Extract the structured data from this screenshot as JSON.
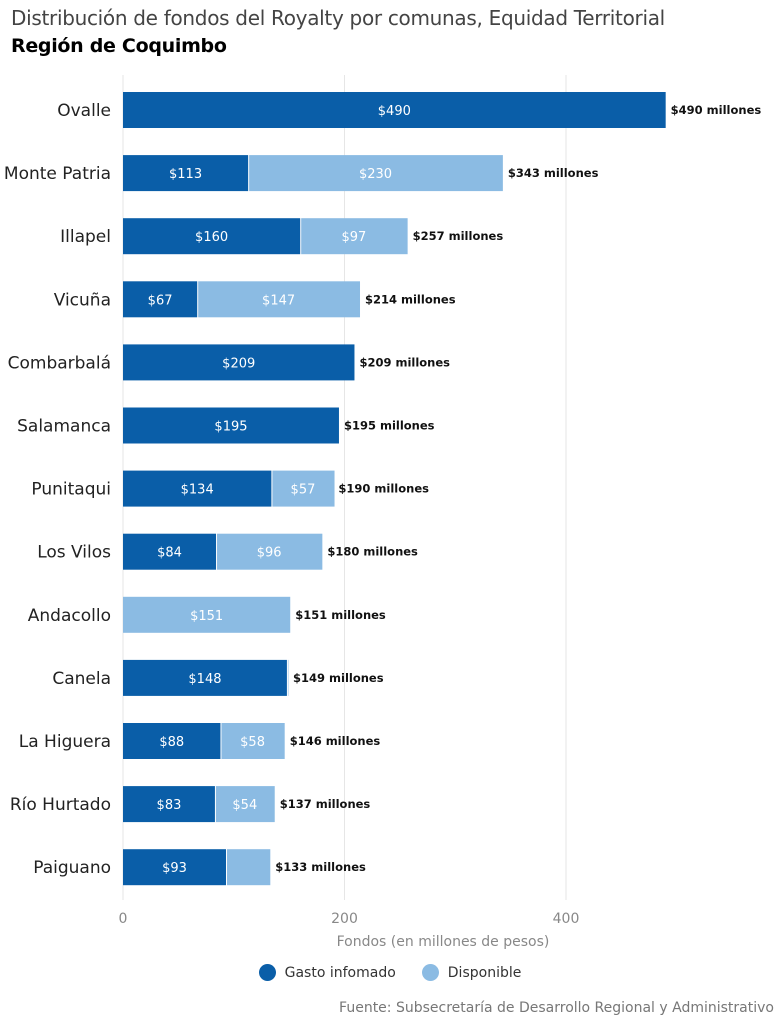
{
  "header": {
    "title": "Distribución de fondos del Royalty por comunas, Equidad Territorial",
    "subtitle": "Región de Coquimbo"
  },
  "colors": {
    "gasto": "#0a5ea8",
    "disponible": "#8bbbe3",
    "grid": "#e6e6e6",
    "bar_text": "#ffffff",
    "total_text": "#111111"
  },
  "legend": {
    "gasto_label": "Gasto infomado",
    "disponible_label": "Disponible"
  },
  "source": "Fuente: Subsecretaría de Desarrollo Regional y Administrativo",
  "chart_data": {
    "type": "bar",
    "orientation": "horizontal",
    "stacked": true,
    "xlabel": "Fondos (en millones de pesos)",
    "xlim": [
      0,
      580
    ],
    "xticks": [
      0,
      200,
      400
    ],
    "grid": "vertical",
    "legend_position": "bottom",
    "categories": [
      "Ovalle",
      "Monte Patria",
      "Illapel",
      "Vicuña",
      "Combarbalá",
      "Salamanca",
      "Punitaqui",
      "Los Vilos",
      "Andacollo",
      "Canela",
      "La Higuera",
      "Río Hurtado",
      "Paiguano"
    ],
    "series": [
      {
        "name": "Gasto infomado",
        "values": [
          490,
          113,
          160,
          67,
          209,
          195,
          134,
          84,
          0,
          148,
          88,
          83,
          93
        ],
        "labels": [
          "$490",
          "$113",
          "$160",
          "$67",
          "$209",
          "$195",
          "$134",
          "$84",
          "",
          "$148",
          "$88",
          "$83",
          "$93"
        ]
      },
      {
        "name": "Disponible",
        "values": [
          0,
          230,
          97,
          147,
          0,
          0,
          57,
          96,
          151,
          1,
          58,
          54,
          40
        ],
        "labels": [
          "",
          "$230",
          "$97",
          "$147",
          "",
          "",
          "$57",
          "$96",
          "$151",
          "",
          "$58",
          "$54",
          ""
        ]
      }
    ],
    "totals": [
      490,
      343,
      257,
      214,
      209,
      195,
      190,
      180,
      151,
      149,
      146,
      137,
      133
    ],
    "total_labels": [
      "$490 millones",
      "$343 millones",
      "$257 millones",
      "$214 millones",
      "$209 millones",
      "$195 millones",
      "$190 millones",
      "$180 millones",
      "$151 millones",
      "$149 millones",
      "$146 millones",
      "$137 millones",
      "$133 millones"
    ]
  }
}
